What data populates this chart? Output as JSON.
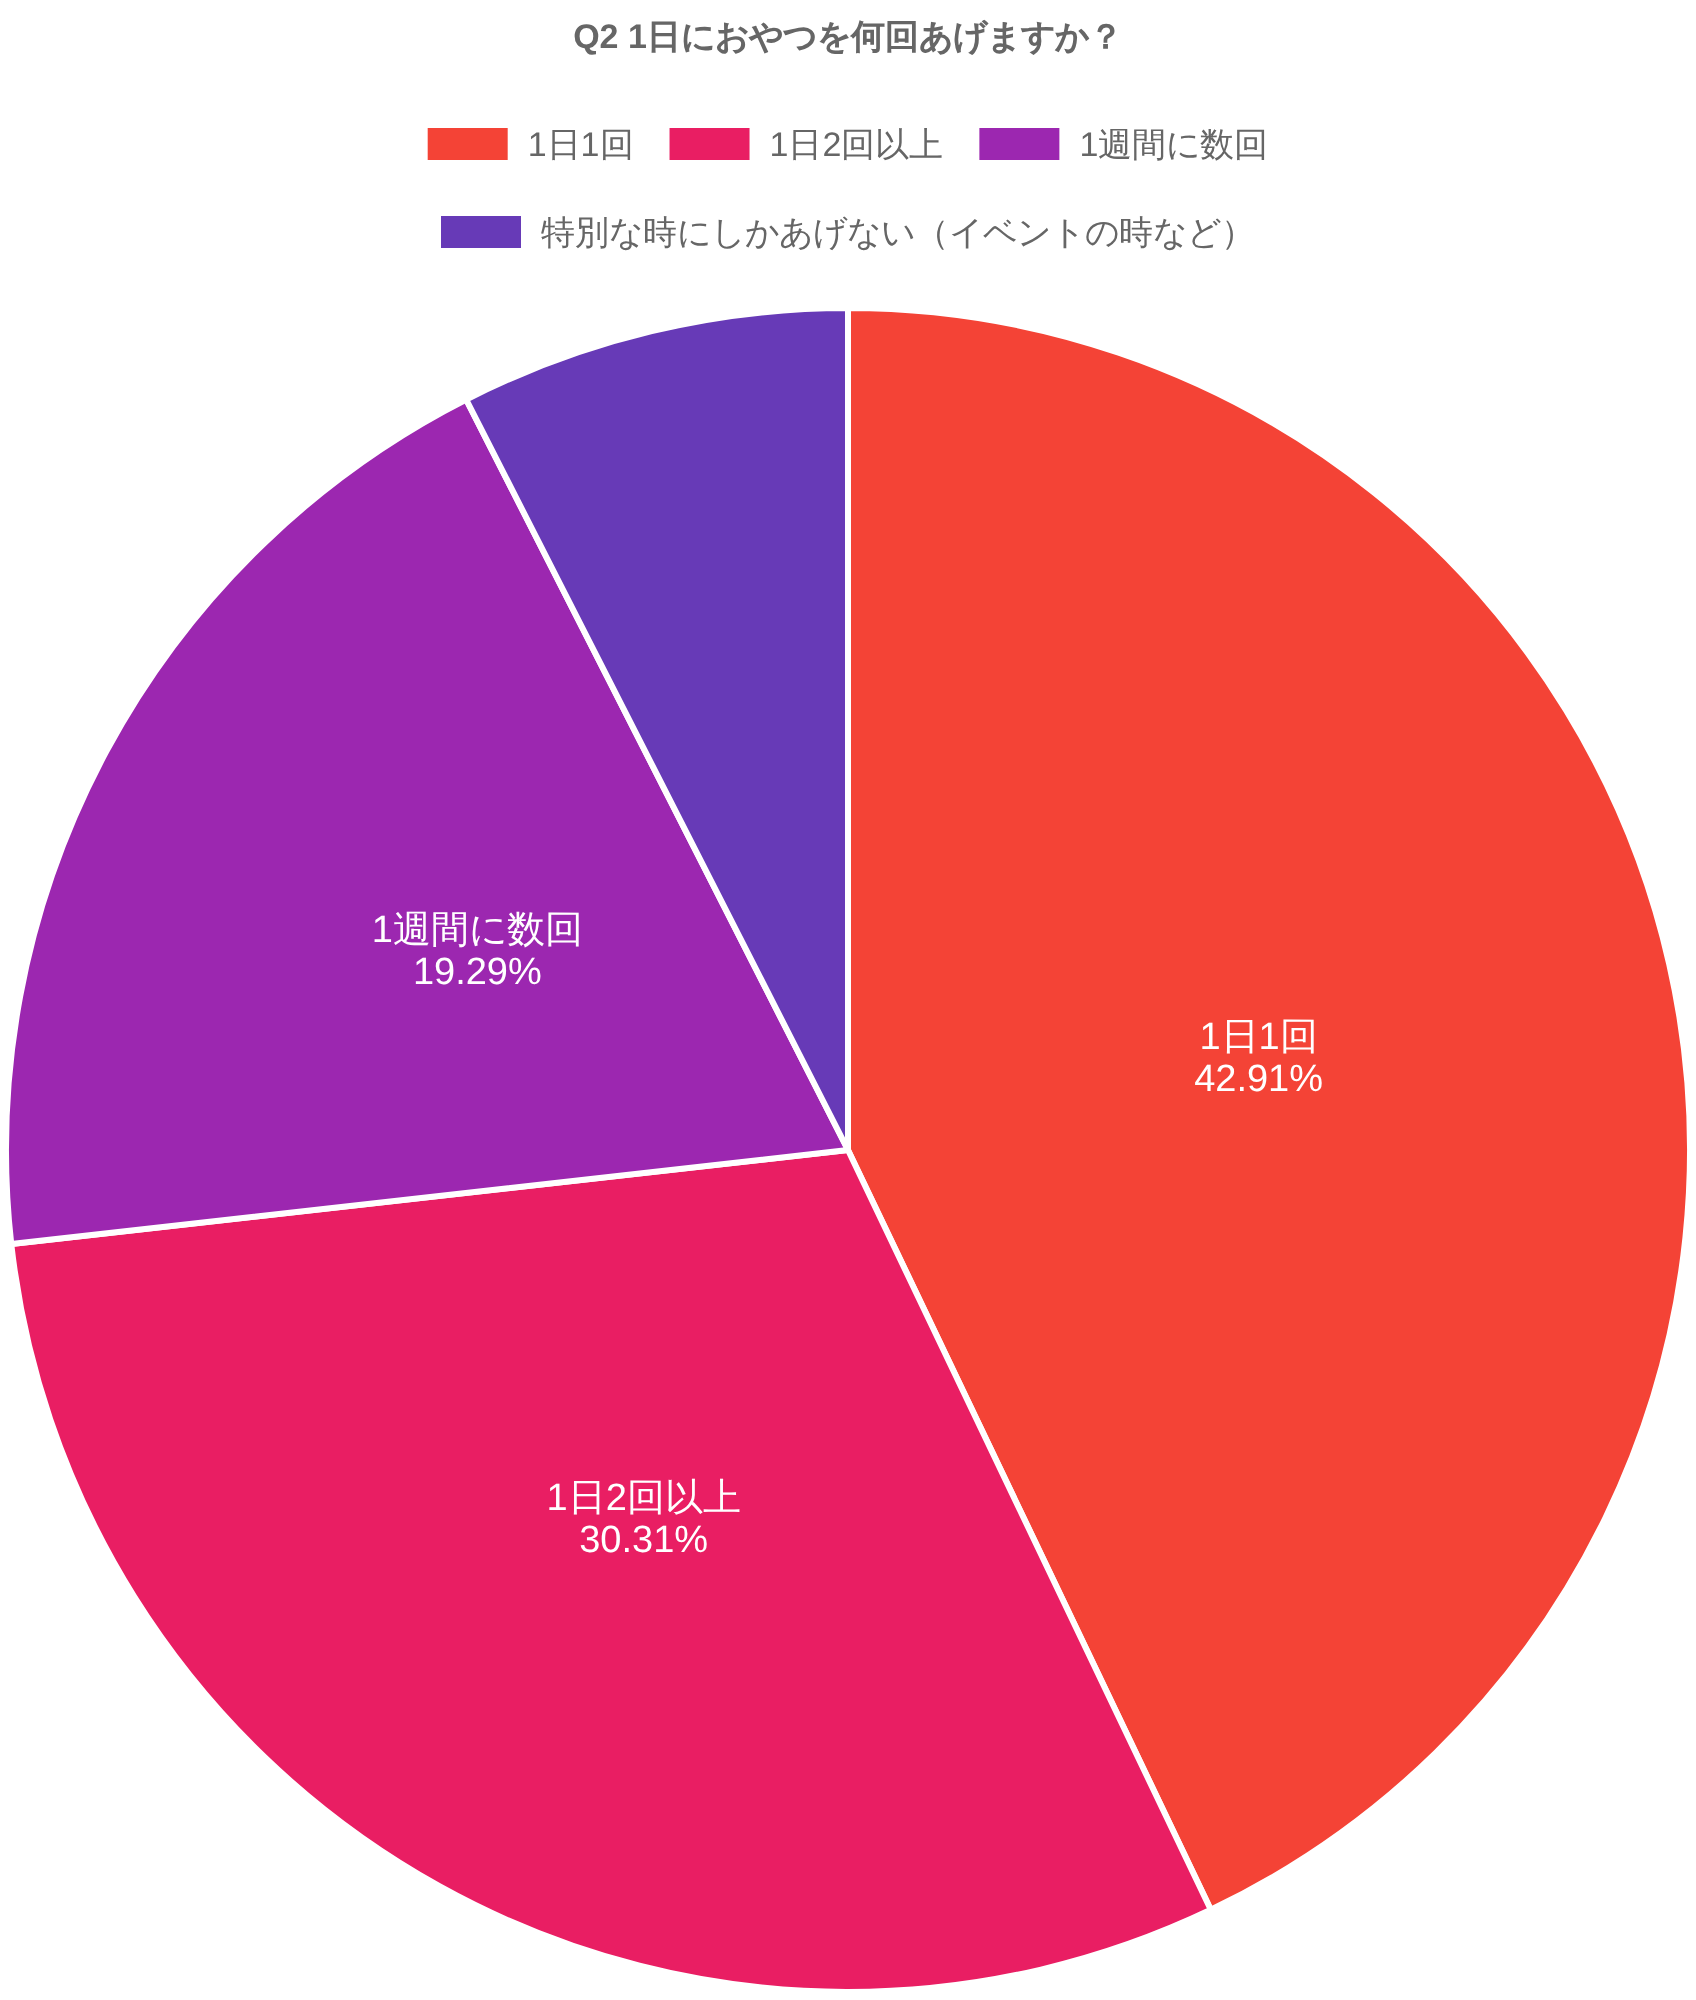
{
  "chart_data": {
    "type": "pie",
    "title": "Q2 1日におやつを何回あげますか？",
    "categories": [
      "1日1回",
      "1日2回以上",
      "1週間に数回",
      "特別な時にしかあげない（イベントの時など）"
    ],
    "values": [
      42.91,
      30.31,
      19.29,
      7.49
    ],
    "value_labels": [
      "42.91%",
      "30.31%",
      "19.29%",
      null
    ],
    "colors": [
      "#f44336",
      "#e91e63",
      "#9c27b0",
      "#673ab7"
    ],
    "legend": "top"
  }
}
